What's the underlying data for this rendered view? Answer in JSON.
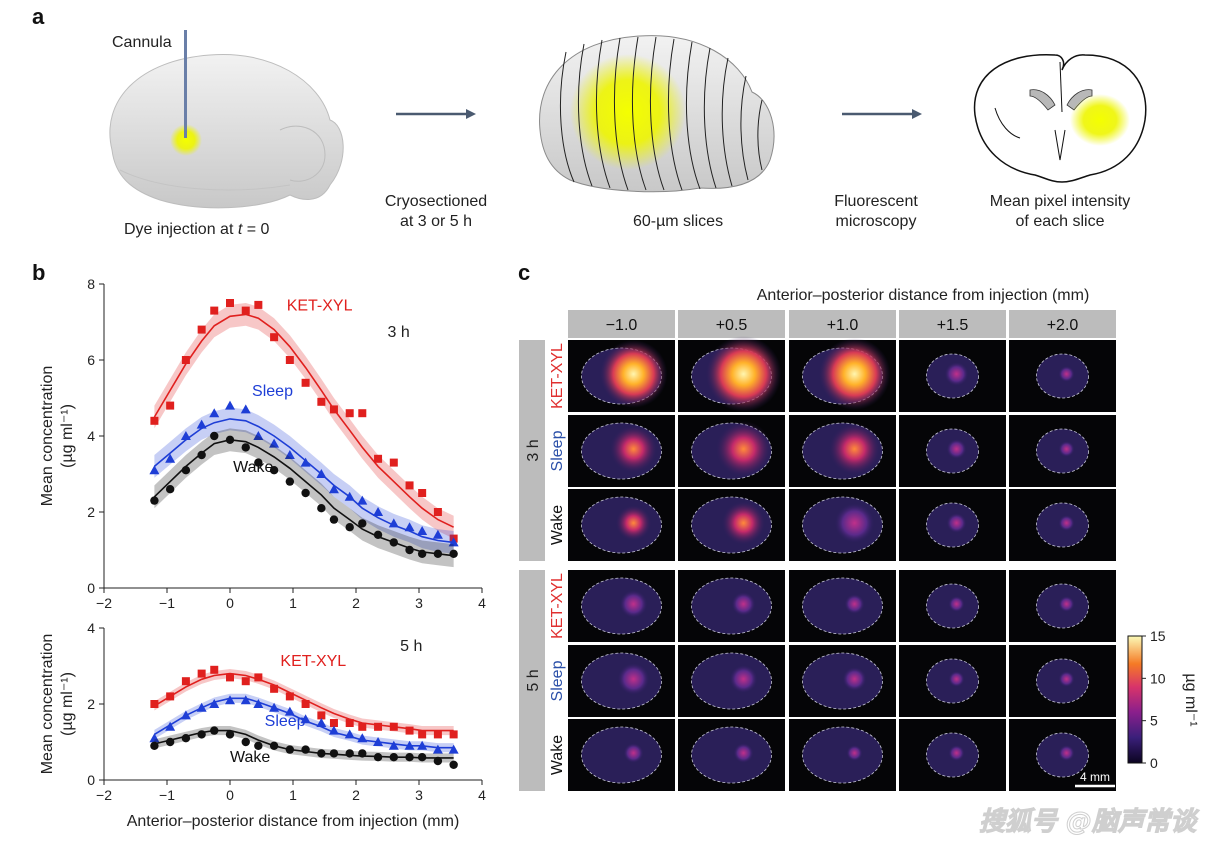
{
  "panel_a": {
    "letter": "a",
    "cannula_label": "Cannula",
    "step1": "Dye injection at ",
    "step1_t": "t",
    "step1_end": " = 0",
    "arrow1_line1": "Cryosectioned",
    "arrow1_line2": "at 3 or 5 h",
    "step2": "60-µm slices",
    "arrow2_line1": "Fluorescent",
    "arrow2_line2": "microscopy",
    "step3_line1": "Mean pixel intensity",
    "step3_line2": "of each slice",
    "colors": {
      "dye": "#e8f000",
      "brain": "#dcdcdc",
      "arrow": "#4a5a70"
    }
  },
  "panel_b": {
    "letter": "b",
    "xlabel": "Anterior–posterior distance from injection (mm)",
    "ylabel_line1": "Mean concentration",
    "ylabel_line2": "(µg ml⁻¹)"
  },
  "panel_c": {
    "letter": "c",
    "title": "Anterior–posterior distance from injection (mm)",
    "columns": [
      "−1.0",
      "+0.5",
      "+1.0",
      "+1.5",
      "+2.0"
    ],
    "groups": [
      {
        "time": "3 h",
        "rows": [
          "KET-XYL",
          "Sleep",
          "Wake"
        ]
      },
      {
        "time": "5 h",
        "rows": [
          "KET-XYL",
          "Sleep",
          "Wake"
        ]
      }
    ],
    "colorbar": {
      "ticks": [
        "15",
        "10",
        "5",
        "0"
      ],
      "label": "µg ml⁻¹",
      "max": 15,
      "min": 0
    },
    "scalebar": "4 mm",
    "row_colors": {
      "KET-XYL": "#e03030",
      "Sleep": "#2a4fa8",
      "Wake": "#111111"
    }
  },
  "watermark": "搜狐号 @脑声常谈",
  "chart_data": [
    {
      "type": "scatter",
      "panel_note": "3 h",
      "annotation": "3 h",
      "xlabel": "",
      "ylabel": "Mean concentration (µg ml⁻¹)",
      "xlim": [
        -2,
        4
      ],
      "ylim": [
        0,
        8
      ],
      "xticks": [
        -2,
        -1,
        0,
        1,
        2,
        3,
        4
      ],
      "yticks": [
        0,
        2,
        4,
        6,
        8
      ],
      "series": [
        {
          "name": "KET-XYL",
          "color": "#e0201e",
          "marker": "square",
          "x": [
            -1.2,
            -0.95,
            -0.7,
            -0.45,
            -0.25,
            0.0,
            0.25,
            0.45,
            0.7,
            0.95,
            1.2,
            1.45,
            1.65,
            1.9,
            2.1,
            2.35,
            2.6,
            2.85,
            3.05,
            3.3,
            3.55
          ],
          "y": [
            4.4,
            4.8,
            6.0,
            6.8,
            7.3,
            7.5,
            7.3,
            7.45,
            6.6,
            6.0,
            5.4,
            4.9,
            4.7,
            4.6,
            4.6,
            3.4,
            3.3,
            2.7,
            2.5,
            2.0,
            1.3
          ],
          "fit": [
            4.5,
            5.2,
            5.9,
            6.5,
            6.9,
            7.15,
            7.2,
            7.1,
            6.8,
            6.35,
            5.8,
            5.2,
            4.7,
            4.15,
            3.7,
            3.2,
            2.8,
            2.4,
            2.1,
            1.8,
            1.6
          ]
        },
        {
          "name": "Sleep",
          "color": "#1e3ed6",
          "marker": "triangle",
          "x": [
            -1.2,
            -0.95,
            -0.7,
            -0.45,
            -0.25,
            0.0,
            0.25,
            0.45,
            0.7,
            0.95,
            1.2,
            1.45,
            1.65,
            1.9,
            2.1,
            2.35,
            2.6,
            2.85,
            3.05,
            3.3,
            3.55
          ],
          "y": [
            3.1,
            3.4,
            4.0,
            4.3,
            4.6,
            4.8,
            4.7,
            4.0,
            3.8,
            3.5,
            3.3,
            3.0,
            2.6,
            2.4,
            2.3,
            2.0,
            1.7,
            1.6,
            1.5,
            1.4,
            1.2
          ],
          "fit": [
            3.2,
            3.55,
            3.9,
            4.2,
            4.35,
            4.45,
            4.4,
            4.25,
            4.0,
            3.7,
            3.35,
            3.0,
            2.7,
            2.4,
            2.1,
            1.85,
            1.65,
            1.5,
            1.35,
            1.25,
            1.2
          ]
        },
        {
          "name": "Wake",
          "color": "#111111",
          "marker": "circle",
          "x": [
            -1.2,
            -0.95,
            -0.7,
            -0.45,
            -0.25,
            0.0,
            0.25,
            0.45,
            0.7,
            0.95,
            1.2,
            1.45,
            1.65,
            1.9,
            2.1,
            2.35,
            2.6,
            2.85,
            3.05,
            3.3,
            3.55
          ],
          "y": [
            2.3,
            2.6,
            3.1,
            3.5,
            4.0,
            3.9,
            3.7,
            3.3,
            3.1,
            2.8,
            2.5,
            2.1,
            1.8,
            1.6,
            1.7,
            1.4,
            1.2,
            1.0,
            0.9,
            0.9,
            0.9
          ],
          "fit": [
            2.4,
            2.8,
            3.2,
            3.55,
            3.8,
            3.9,
            3.85,
            3.7,
            3.45,
            3.15,
            2.8,
            2.45,
            2.1,
            1.8,
            1.55,
            1.35,
            1.2,
            1.05,
            0.95,
            0.9,
            0.85
          ]
        }
      ]
    },
    {
      "type": "scatter",
      "panel_note": "5 h",
      "annotation": "5 h",
      "xlabel": "Anterior–posterior distance from injection (mm)",
      "ylabel": "Mean concentration (µg ml⁻¹)",
      "xlim": [
        -2,
        4
      ],
      "ylim": [
        0,
        4
      ],
      "xticks": [
        -2,
        -1,
        0,
        1,
        2,
        3,
        4
      ],
      "yticks": [
        0,
        2,
        4
      ],
      "series": [
        {
          "name": "KET-XYL",
          "color": "#e0201e",
          "marker": "square",
          "x": [
            -1.2,
            -0.95,
            -0.7,
            -0.45,
            -0.25,
            0.0,
            0.25,
            0.45,
            0.7,
            0.95,
            1.2,
            1.45,
            1.65,
            1.9,
            2.1,
            2.35,
            2.6,
            2.85,
            3.05,
            3.3,
            3.55
          ],
          "y": [
            2.0,
            2.2,
            2.6,
            2.8,
            2.9,
            2.7,
            2.6,
            2.7,
            2.4,
            2.2,
            2.0,
            1.7,
            1.5,
            1.5,
            1.4,
            1.4,
            1.4,
            1.3,
            1.2,
            1.2,
            1.2
          ],
          "fit": [
            1.95,
            2.2,
            2.45,
            2.65,
            2.75,
            2.8,
            2.75,
            2.65,
            2.5,
            2.3,
            2.1,
            1.9,
            1.75,
            1.6,
            1.5,
            1.45,
            1.4,
            1.35,
            1.3,
            1.3,
            1.3
          ]
        },
        {
          "name": "Sleep",
          "color": "#1e3ed6",
          "marker": "triangle",
          "x": [
            -1.2,
            -0.95,
            -0.7,
            -0.45,
            -0.25,
            0.0,
            0.25,
            0.45,
            0.7,
            0.95,
            1.2,
            1.45,
            1.65,
            1.9,
            2.1,
            2.35,
            2.6,
            2.85,
            3.05,
            3.3,
            3.55
          ],
          "y": [
            1.1,
            1.4,
            1.7,
            1.9,
            2.0,
            2.1,
            2.1,
            2.0,
            1.9,
            1.8,
            1.6,
            1.5,
            1.3,
            1.2,
            1.1,
            1.0,
            0.9,
            0.9,
            0.9,
            0.8,
            0.8
          ],
          "fit": [
            1.2,
            1.45,
            1.7,
            1.9,
            2.05,
            2.15,
            2.15,
            2.05,
            1.9,
            1.75,
            1.55,
            1.4,
            1.25,
            1.15,
            1.05,
            1.0,
            0.95,
            0.9,
            0.9,
            0.85,
            0.85
          ]
        },
        {
          "name": "Wake",
          "color": "#111111",
          "marker": "circle",
          "x": [
            -1.2,
            -0.95,
            -0.7,
            -0.45,
            -0.25,
            0.0,
            0.25,
            0.45,
            0.7,
            0.95,
            1.2,
            1.45,
            1.65,
            1.9,
            2.1,
            2.35,
            2.6,
            2.85,
            3.05,
            3.3,
            3.55
          ],
          "y": [
            0.9,
            1.0,
            1.1,
            1.2,
            1.3,
            1.2,
            1.0,
            0.9,
            0.9,
            0.8,
            0.8,
            0.7,
            0.7,
            0.7,
            0.7,
            0.6,
            0.6,
            0.6,
            0.6,
            0.5,
            0.4
          ],
          "fit": [
            0.95,
            1.05,
            1.15,
            1.25,
            1.3,
            1.3,
            1.2,
            1.05,
            0.9,
            0.8,
            0.75,
            0.7,
            0.68,
            0.65,
            0.63,
            0.62,
            0.6,
            0.6,
            0.58,
            0.58,
            0.58
          ]
        }
      ]
    }
  ]
}
